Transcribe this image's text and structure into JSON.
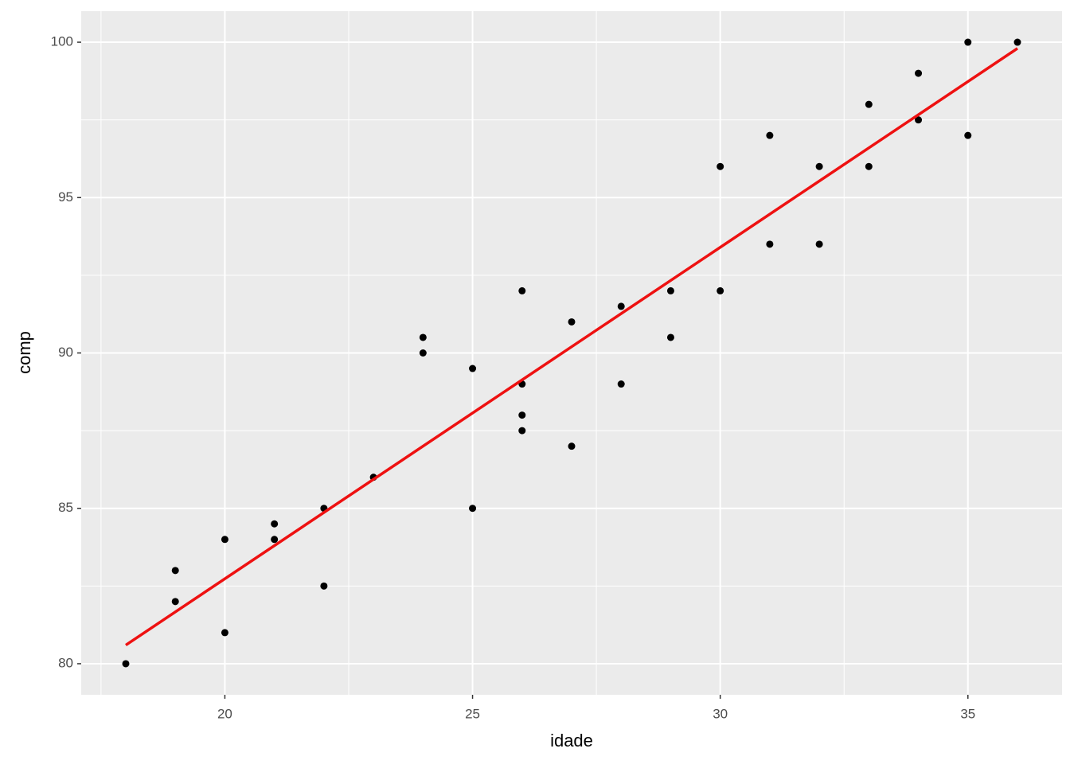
{
  "chart_data": {
    "type": "scatter",
    "xlabel": "idade",
    "ylabel": "comp",
    "x": [
      18,
      19,
      19,
      20,
      20,
      21,
      21,
      22,
      22,
      23,
      24,
      24,
      25,
      25,
      26,
      26,
      26,
      26,
      27,
      27,
      28,
      28,
      29,
      29,
      30,
      30,
      31,
      31,
      32,
      32,
      33,
      33,
      34,
      34,
      35,
      35,
      36
    ],
    "y": [
      80,
      83,
      82,
      84,
      81,
      84.5,
      84,
      85,
      82.5,
      86,
      90.5,
      90,
      89.5,
      85,
      92,
      89,
      88,
      87.5,
      91,
      87,
      91.5,
      89,
      92,
      90.5,
      96,
      92,
      97,
      93.5,
      96,
      93.5,
      98,
      96,
      99,
      97.5,
      100,
      97,
      100
    ],
    "color": "#000000",
    "trend": {
      "x": [
        18,
        36
      ],
      "y": [
        80.6,
        99.8
      ],
      "color": "#ee1111"
    },
    "xlim": [
      17.1,
      36.9
    ],
    "ylim": [
      79,
      101
    ],
    "xticks": [
      20,
      25,
      30,
      35
    ],
    "yticks": [
      80,
      85,
      90,
      95,
      100
    ],
    "grid": true
  }
}
